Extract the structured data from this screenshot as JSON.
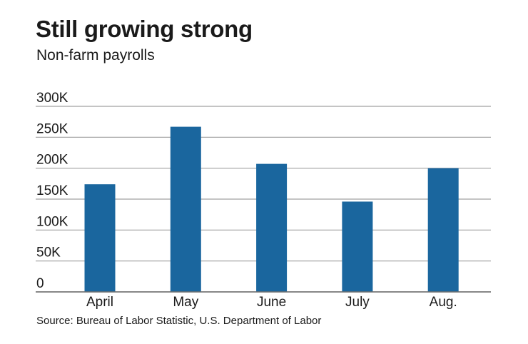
{
  "chart_data": {
    "type": "bar",
    "title": "Still growing strong",
    "subtitle": "Non-farm payrolls",
    "source": "Source: Bureau of Labor Statistic, U.S. Department of Labor",
    "categories": [
      "April",
      "May",
      "June",
      "July",
      "Aug."
    ],
    "values": [
      174000,
      267000,
      207000,
      146000,
      200000
    ],
    "ylim": [
      0,
      300000
    ],
    "yticks": [
      0,
      50000,
      100000,
      150000,
      200000,
      250000,
      300000
    ],
    "ytick_labels": [
      "0",
      "50K",
      "100K",
      "150K",
      "200K",
      "250K",
      "300K"
    ],
    "xlabel": "",
    "ylabel": "",
    "grid": true,
    "bar_color": "#1a669e",
    "grid_color": "#a0a0a0"
  }
}
